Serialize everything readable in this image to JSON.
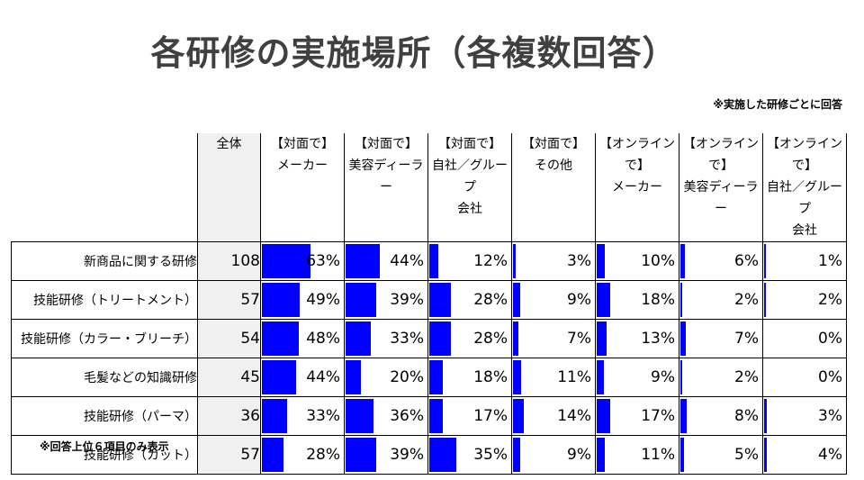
{
  "title": "各研修の実施場所（各複数回答）",
  "note_top": "※実施した研修ごとに回答",
  "note_bottom": "※回答上位６項目のみ表示",
  "chart_data": {
    "type": "table",
    "total_header": "全体",
    "columns": [
      {
        "line1": "【対面で】",
        "line2": "メーカー",
        "line3": ""
      },
      {
        "line1": "【対面で】",
        "line2": "美容ディーラー",
        "line3": ""
      },
      {
        "line1": "【対面で】",
        "line2": "自社／グループ",
        "line3": "会社"
      },
      {
        "line1": "【対面で】",
        "line2": "その他",
        "line3": ""
      },
      {
        "line1": "【オンラインで】",
        "line2": "メーカー",
        "line3": ""
      },
      {
        "line1": "【オンラインで】",
        "line2": "美容ディーラー",
        "line3": ""
      },
      {
        "line1": "【オンラインで】",
        "line2": "自社／グループ",
        "line3": "会社"
      }
    ],
    "rows": [
      {
        "label": "新商品に関する研修",
        "total": 108,
        "values": [
          63,
          44,
          12,
          3,
          10,
          6,
          1
        ]
      },
      {
        "label": "技能研修（トリートメント）",
        "total": 57,
        "values": [
          49,
          39,
          28,
          9,
          18,
          2,
          2
        ]
      },
      {
        "label": "技能研修（カラー・ブリーチ）",
        "total": 54,
        "values": [
          48,
          33,
          28,
          7,
          13,
          7,
          0
        ]
      },
      {
        "label": "毛髪などの知識研修",
        "total": 45,
        "values": [
          44,
          20,
          18,
          11,
          9,
          2,
          0
        ]
      },
      {
        "label": "技能研修（パーマ）",
        "total": 36,
        "values": [
          33,
          36,
          17,
          14,
          17,
          8,
          3
        ]
      },
      {
        "label": "技能研修（カット）",
        "total": 57,
        "values": [
          28,
          39,
          35,
          9,
          11,
          5,
          4
        ]
      }
    ],
    "value_unit": "%",
    "bar_color": "#0000ff"
  }
}
